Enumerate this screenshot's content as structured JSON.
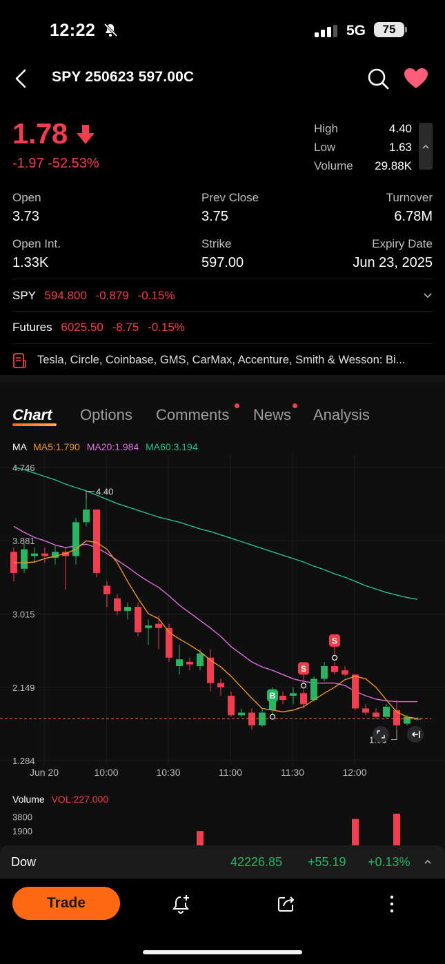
{
  "status_bar": {
    "time": "12:22",
    "network": "5G",
    "battery": "75"
  },
  "header": {
    "title": "SPY 250623 597.00C"
  },
  "quote": {
    "price": "1.78",
    "change": "-1.97",
    "change_pct": "-52.53%",
    "high_label": "High",
    "high": "4.40",
    "low_label": "Low",
    "low": "1.63",
    "volume_label": "Volume",
    "volume": "29.88K"
  },
  "stats": {
    "open_label": "Open",
    "open": "3.73",
    "prev_close_label": "Prev Close",
    "prev_close": "3.75",
    "turnover_label": "Turnover",
    "turnover": "6.78M",
    "open_int_label": "Open Int.",
    "open_int": "1.33K",
    "strike_label": "Strike",
    "strike": "597.00",
    "expiry_label": "Expiry Date",
    "expiry": "Jun 23, 2025"
  },
  "underlying": {
    "symbol": "SPY",
    "price": "594.800",
    "change": "-0.879",
    "change_pct": "-0.15%"
  },
  "futures": {
    "label": "Futures",
    "price": "6025.50",
    "change": "-8.75",
    "change_pct": "-0.15%"
  },
  "news_ticker": {
    "text": "Tesla, Circle, Coinbase, GMS, CarMax, Accenture, Smith & Wesson: Bi..."
  },
  "tabs": [
    {
      "label": "Chart",
      "active": true,
      "dot": false
    },
    {
      "label": "Options",
      "active": false,
      "dot": false
    },
    {
      "label": "Comments",
      "active": false,
      "dot": true
    },
    {
      "label": "News",
      "active": false,
      "dot": true
    },
    {
      "label": "Analysis",
      "active": false,
      "dot": false
    }
  ],
  "indicators": {
    "ma_label": "MA",
    "ma5": "MA5:1.790",
    "ma20": "MA20:1.984",
    "ma60": "MA60:3.194",
    "volume_label": "Volume",
    "vol": "VOL:227.000"
  },
  "chart_data": {
    "type": "candlestick",
    "y_ticks": [
      "4.746",
      "3.881",
      "3.015",
      "2.149",
      "1.284"
    ],
    "ylim": [
      1.284,
      4.746
    ],
    "x_ticks": [
      "Jun 20",
      "10:00",
      "10:30",
      "11:00",
      "11:30",
      "12:00"
    ],
    "high_marker": "4.40",
    "low_marker": "1.63",
    "last_price_line": 1.78,
    "candles": [
      {
        "o": 3.75,
        "c": 3.5,
        "h": 3.8,
        "l": 3.4
      },
      {
        "o": 3.55,
        "c": 3.78,
        "h": 3.85,
        "l": 3.5
      },
      {
        "o": 3.7,
        "c": 3.73,
        "h": 3.8,
        "l": 3.62
      },
      {
        "o": 3.73,
        "c": 3.7,
        "h": 3.8,
        "l": 3.62
      },
      {
        "o": 3.68,
        "c": 3.75,
        "h": 3.82,
        "l": 3.6
      },
      {
        "o": 3.75,
        "c": 3.7,
        "h": 3.8,
        "l": 3.3
      },
      {
        "o": 3.7,
        "c": 4.1,
        "h": 4.15,
        "l": 3.6
      },
      {
        "o": 4.1,
        "c": 4.25,
        "h": 4.4,
        "l": 4.05
      },
      {
        "o": 4.25,
        "c": 3.5,
        "h": 4.25,
        "l": 3.45
      },
      {
        "o": 3.35,
        "c": 3.25,
        "h": 3.4,
        "l": 3.1
      },
      {
        "o": 3.2,
        "c": 3.05,
        "h": 3.25,
        "l": 3.0
      },
      {
        "o": 3.05,
        "c": 3.1,
        "h": 3.15,
        "l": 2.95
      },
      {
        "o": 3.1,
        "c": 2.8,
        "h": 3.15,
        "l": 2.75
      },
      {
        "o": 2.85,
        "c": 2.88,
        "h": 2.95,
        "l": 2.65
      },
      {
        "o": 2.9,
        "c": 2.85,
        "h": 3.0,
        "l": 2.6
      },
      {
        "o": 2.85,
        "c": 2.5,
        "h": 2.9,
        "l": 2.45
      },
      {
        "o": 2.4,
        "c": 2.48,
        "h": 2.65,
        "l": 2.3
      },
      {
        "o": 2.45,
        "c": 2.42,
        "h": 2.5,
        "l": 2.35
      },
      {
        "o": 2.4,
        "c": 2.55,
        "h": 2.6,
        "l": 2.35
      },
      {
        "o": 2.5,
        "c": 2.2,
        "h": 2.6,
        "l": 2.1
      },
      {
        "o": 2.2,
        "c": 2.15,
        "h": 2.25,
        "l": 2.05
      },
      {
        "o": 2.05,
        "c": 1.82,
        "h": 2.1,
        "l": 1.8
      },
      {
        "o": 1.82,
        "c": 1.85,
        "h": 1.9,
        "l": 1.8
      },
      {
        "o": 1.85,
        "c": 1.7,
        "h": 1.9,
        "l": 1.65
      },
      {
        "o": 1.7,
        "c": 1.85,
        "h": 1.9,
        "l": 1.68
      },
      {
        "o": 1.88,
        "c": 2.1,
        "h": 2.15,
        "l": 1.85
      },
      {
        "o": 2.05,
        "c": 2.0,
        "h": 2.1,
        "l": 1.95
      },
      {
        "o": 2.05,
        "c": 2.08,
        "h": 2.15,
        "l": 1.95
      },
      {
        "o": 2.08,
        "c": 1.95,
        "h": 2.12,
        "l": 1.9
      },
      {
        "o": 2.0,
        "c": 2.25,
        "h": 2.28,
        "l": 1.98
      },
      {
        "o": 2.25,
        "c": 2.4,
        "h": 2.45,
        "l": 2.22
      },
      {
        "o": 2.4,
        "c": 2.33,
        "h": 2.45,
        "l": 2.3
      },
      {
        "o": 2.35,
        "c": 2.3,
        "h": 2.4,
        "l": 2.28
      },
      {
        "o": 2.3,
        "c": 1.9,
        "h": 2.3,
        "l": 1.88
      },
      {
        "o": 1.9,
        "c": 1.85,
        "h": 1.95,
        "l": 1.82
      },
      {
        "o": 1.85,
        "c": 1.8,
        "h": 1.9,
        "l": 1.78
      },
      {
        "o": 1.8,
        "c": 1.92,
        "h": 1.95,
        "l": 1.78
      },
      {
        "o": 1.88,
        "c": 1.7,
        "h": 2.0,
        "l": 1.63
      },
      {
        "o": 1.72,
        "c": 1.8,
        "h": 1.82,
        "l": 1.7
      },
      {
        "o": 1.78,
        "c": 1.78,
        "h": 1.8,
        "l": 1.76
      }
    ],
    "ma5": [
      3.62,
      3.62,
      3.63,
      3.67,
      3.7,
      3.73,
      3.78,
      3.88,
      3.86,
      3.78,
      3.62,
      3.4,
      3.2,
      3.02,
      2.96,
      2.8,
      2.72,
      2.65,
      2.57,
      2.47,
      2.39,
      2.28,
      2.15,
      2.02,
      1.9,
      1.88,
      1.86,
      1.88,
      1.92,
      2.0,
      2.08,
      2.15,
      2.24,
      2.28,
      2.25,
      2.15,
      2.0,
      1.86,
      1.8,
      1.78
    ],
    "ma20": [
      4.05,
      3.98,
      3.92,
      3.88,
      3.83,
      3.8,
      3.82,
      3.84,
      3.8,
      3.73,
      3.65,
      3.57,
      3.48,
      3.4,
      3.33,
      3.23,
      3.12,
      3.03,
      2.94,
      2.85,
      2.75,
      2.63,
      2.54,
      2.45,
      2.39,
      2.35,
      2.3,
      2.25,
      2.22,
      2.2,
      2.2,
      2.2,
      2.17,
      2.1,
      2.05,
      2.01,
      1.99,
      1.98,
      1.98,
      1.98
    ],
    "ma60_series": [
      4.75,
      4.72,
      4.68,
      4.64,
      4.6,
      4.55,
      4.51,
      4.47,
      4.42,
      4.37,
      4.32,
      4.28,
      4.24,
      4.2,
      4.16,
      4.13,
      4.1,
      4.06,
      4.02,
      3.99,
      3.95,
      3.91,
      3.87,
      3.83,
      3.79,
      3.75,
      3.71,
      3.67,
      3.63,
      3.58,
      3.54,
      3.49,
      3.45,
      3.4,
      3.35,
      3.31,
      3.27,
      3.24,
      3.21,
      3.19
    ],
    "signals": [
      {
        "index": 25,
        "type": "B"
      },
      {
        "index": 28,
        "type": "S"
      },
      {
        "index": 31,
        "type": "S"
      }
    ],
    "volume_ticks": [
      "3800",
      "1900"
    ],
    "volume_bars": [
      {
        "index": 18,
        "value": 1900,
        "color": "red"
      },
      {
        "index": 33,
        "value": 3500,
        "color": "red"
      },
      {
        "index": 37,
        "value": 4200,
        "color": "red"
      }
    ]
  },
  "ticker_bar": {
    "name": "Dow",
    "value": "42226.85",
    "change": "+55.19",
    "change_pct": "+0.13%"
  },
  "bottom": {
    "trade_label": "Trade"
  },
  "colors": {
    "up": "#27b562",
    "down": "#f23d4f",
    "accent": "#ff6a13",
    "ma5": "#f0962c",
    "ma20": "#e070e0",
    "ma60": "#29c08c"
  }
}
